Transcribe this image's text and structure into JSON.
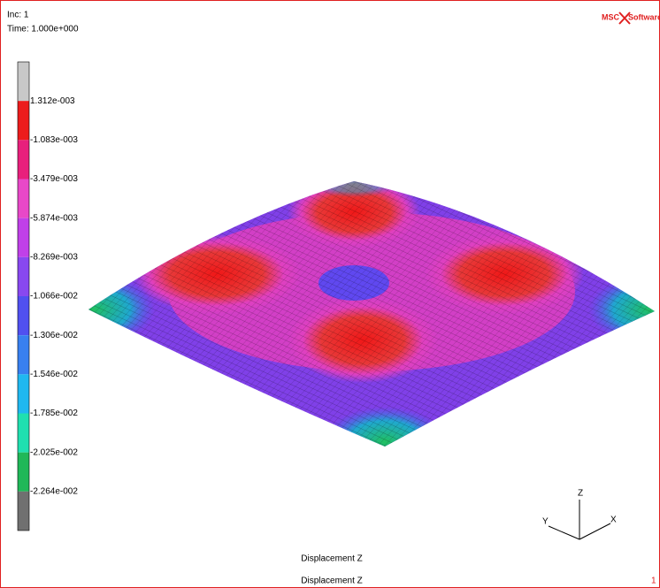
{
  "header": {
    "increment": "Inc:  1",
    "time": "Time:  1.000e+000"
  },
  "logo": {
    "brand": "MSC",
    "product": "Software"
  },
  "legend": {
    "labels": [
      "1.312e-003",
      "-1.083e-003",
      "-3.479e-003",
      "-5.874e-003",
      "-8.269e-003",
      "-1.066e-002",
      "-1.306e-002",
      "-1.546e-002",
      "-1.785e-002",
      "-2.025e-002",
      "-2.264e-002"
    ],
    "colors": [
      "#c8c8c8",
      "#ec1c1c",
      "#e8207c",
      "#e848c8",
      "#c040e8",
      "#8848f0",
      "#5050f0",
      "#3880f0",
      "#20b8f0",
      "#20e0b0",
      "#20b858",
      "#707070"
    ]
  },
  "triad": {
    "x": "X",
    "y": "Y",
    "z": "Z"
  },
  "footer": {
    "caption": "Displacement Z",
    "title": "Displacement Z",
    "page": "1"
  }
}
